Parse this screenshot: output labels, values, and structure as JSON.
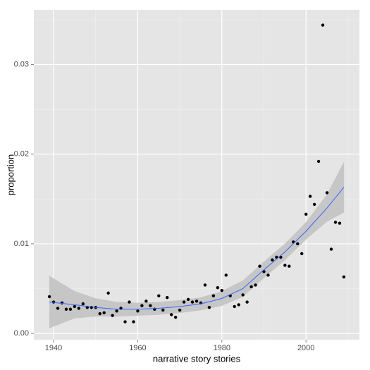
{
  "chart_data": {
    "type": "scatter",
    "xlabel": "narrative story stories",
    "ylabel": "proportion",
    "x": [
      1939,
      1940,
      1941,
      1942,
      1943,
      1944,
      1945,
      1946,
      1947,
      1948,
      1949,
      1950,
      1951,
      1952,
      1953,
      1954,
      1955,
      1956,
      1957,
      1958,
      1959,
      1960,
      1961,
      1962,
      1963,
      1964,
      1965,
      1966,
      1967,
      1968,
      1969,
      1970,
      1971,
      1972,
      1973,
      1974,
      1975,
      1976,
      1977,
      1978,
      1979,
      1980,
      1981,
      1982,
      1983,
      1984,
      1985,
      1986,
      1987,
      1988,
      1989,
      1990,
      1991,
      1992,
      1993,
      1994,
      1995,
      1996,
      1997,
      1998,
      1999,
      2000,
      2001,
      2002,
      2003,
      2004,
      2005,
      2006,
      2007,
      2008,
      2009
    ],
    "values": [
      0.0041,
      0.0035,
      0.0028,
      0.0034,
      0.0027,
      0.0027,
      0.003,
      0.0028,
      0.0033,
      0.0029,
      0.0029,
      0.0029,
      0.0022,
      0.0023,
      0.0045,
      0.002,
      0.0025,
      0.0028,
      0.0013,
      0.0035,
      0.0013,
      0.0025,
      0.0031,
      0.0036,
      0.0031,
      0.0027,
      0.0042,
      0.0026,
      0.004,
      0.0021,
      0.0018,
      0.0026,
      0.0035,
      0.0038,
      0.0035,
      0.0036,
      0.0034,
      0.0054,
      0.0029,
      0.0042,
      0.0051,
      0.0048,
      0.0065,
      0.0042,
      0.003,
      0.0032,
      0.0043,
      0.0035,
      0.0052,
      0.0054,
      0.0075,
      0.0069,
      0.0065,
      0.0082,
      0.0085,
      0.0085,
      0.0076,
      0.0075,
      0.0102,
      0.01,
      0.0089,
      0.0133,
      0.0153,
      0.0144,
      0.0192,
      0.0344,
      0.0157,
      0.0094,
      0.0124,
      0.0123,
      0.0063
    ],
    "color": "#000000",
    "smooth": {
      "color": "#3366ff",
      "band_color": "#c6c6c6",
      "x": [
        1939,
        1945,
        1950,
        1955,
        1960,
        1965,
        1970,
        1975,
        1980,
        1985,
        1990,
        1995,
        2000,
        2005,
        2009
      ],
      "values": [
        0.0035,
        0.0032,
        0.0029,
        0.0027,
        0.0027,
        0.0028,
        0.003,
        0.0033,
        0.0039,
        0.005,
        0.0071,
        0.0091,
        0.0114,
        0.014,
        0.0163
      ],
      "lower": [
        0.0006,
        0.0017,
        0.0019,
        0.0019,
        0.002,
        0.0021,
        0.0023,
        0.0026,
        0.0031,
        0.0041,
        0.0062,
        0.0082,
        0.0105,
        0.0125,
        0.0135
      ],
      "upper": [
        0.0064,
        0.0047,
        0.0039,
        0.0035,
        0.0034,
        0.0035,
        0.0037,
        0.004,
        0.0047,
        0.0059,
        0.008,
        0.01,
        0.0124,
        0.0155,
        0.0191
      ]
    },
    "xlim": [
      1935.3,
      2012.7
    ],
    "ylim": [
      -0.0007,
      0.0361
    ],
    "xticks": [
      1940,
      1960,
      1980,
      2000
    ],
    "yticks": [
      {
        "value": 0,
        "label": "0.00"
      },
      {
        "value": 0.01,
        "label": "0.01"
      },
      {
        "value": 0.02,
        "label": "0.02"
      },
      {
        "value": 0.03,
        "label": "0.03"
      }
    ],
    "xminor": [
      1950,
      1970,
      1990,
      2010
    ],
    "yminor": [
      0.005,
      0.015,
      0.025,
      0.035
    ],
    "grid": true
  }
}
